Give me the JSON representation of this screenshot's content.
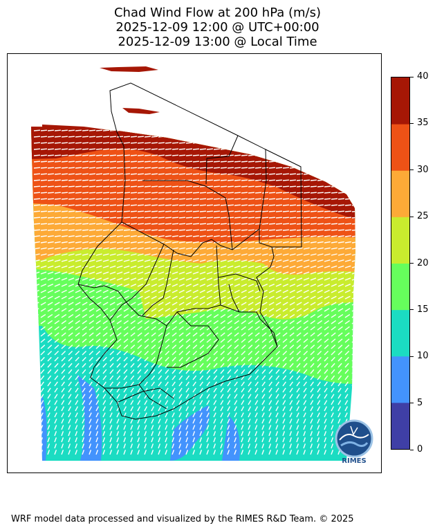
{
  "title": {
    "line1": "Chad Wind Flow at 200 hPa (m/s)",
    "line2": "2025-12-09 12:00 @ UTC+00:00",
    "line3": "2025-12-09 13:00 @ Local Time"
  },
  "colorbar": {
    "min": 0,
    "max": 40,
    "levels": [
      {
        "from": 0,
        "to": 5,
        "color": "#3f3fa6"
      },
      {
        "from": 5,
        "to": 10,
        "color": "#4393fd"
      },
      {
        "from": 10,
        "to": 15,
        "color": "#1bdcc2"
      },
      {
        "from": 15,
        "to": 20,
        "color": "#66fe5c"
      },
      {
        "from": 20,
        "to": 25,
        "color": "#c9ec2e"
      },
      {
        "from": 25,
        "to": 30,
        "color": "#fdaa37"
      },
      {
        "from": 30,
        "to": 35,
        "color": "#ee5216"
      },
      {
        "from": 35,
        "to": 40,
        "color": "#a61705"
      }
    ],
    "tick_labels": [
      "0",
      "5",
      "10",
      "15",
      "20",
      "25",
      "30",
      "35",
      "40"
    ]
  },
  "logo": {
    "text": "RIMES",
    "icon": "rimes-globe-logo"
  },
  "footer": "WRF model data processed and visualized by the RIMES R&D Team. © 2025"
}
